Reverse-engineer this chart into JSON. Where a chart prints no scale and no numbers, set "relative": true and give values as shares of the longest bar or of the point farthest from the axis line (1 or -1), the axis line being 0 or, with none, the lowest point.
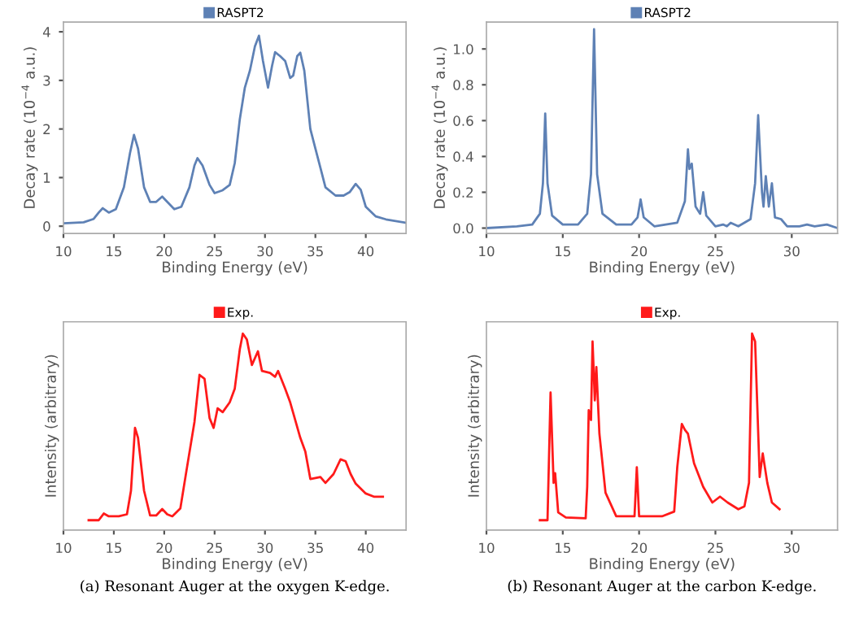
{
  "chart_data": [
    {
      "type": "line",
      "xlabel": "Binding Energy (eV)",
      "ylabel": "Decay rate (10$^{−4}$ a.u.)",
      "legend": "top",
      "xlim": [
        10,
        44
      ],
      "ylim": [
        -0.15,
        4.2
      ],
      "xticks": [
        10,
        15,
        20,
        25,
        30,
        35,
        40
      ],
      "yticks": [
        0,
        1,
        2,
        3,
        4
      ],
      "series": [
        {
          "name": "RASPT2",
          "color": "#5e81b5",
          "x": [
            10,
            12,
            13,
            13.5,
            13.9,
            14.5,
            15.2,
            16,
            16.6,
            17.0,
            17.4,
            18,
            18.6,
            19.2,
            19.8,
            20.3,
            21,
            21.7,
            22.5,
            23.0,
            23.3,
            23.8,
            24.5,
            25,
            25.8,
            26.5,
            27,
            27.5,
            28,
            28.5,
            29,
            29.4,
            29.8,
            30.3,
            30.7,
            31,
            31.5,
            32,
            32.5,
            32.8,
            33.2,
            33.5,
            33.9,
            34.5,
            35,
            35.5,
            36,
            37,
            37.8,
            38.4,
            39,
            39.5,
            40,
            41,
            42,
            44
          ],
          "values": [
            0.06,
            0.08,
            0.15,
            0.28,
            0.37,
            0.28,
            0.35,
            0.8,
            1.5,
            1.88,
            1.6,
            0.8,
            0.5,
            0.5,
            0.61,
            0.5,
            0.35,
            0.4,
            0.8,
            1.25,
            1.4,
            1.25,
            0.85,
            0.68,
            0.74,
            0.85,
            1.3,
            2.2,
            2.85,
            3.2,
            3.7,
            3.92,
            3.4,
            2.85,
            3.3,
            3.58,
            3.5,
            3.4,
            3.05,
            3.1,
            3.5,
            3.57,
            3.2,
            2.0,
            1.6,
            1.2,
            0.8,
            0.63,
            0.63,
            0.7,
            0.87,
            0.75,
            0.4,
            0.2,
            0.14,
            0.07
          ]
        }
      ]
    },
    {
      "type": "line",
      "xlabel": "Binding Energy (eV)",
      "ylabel": "Decay rate (10$^{−4}$ a.u.)",
      "legend": "top",
      "xlim": [
        10,
        33
      ],
      "ylim": [
        -0.03,
        1.15
      ],
      "xticks": [
        10,
        15,
        20,
        25,
        30
      ],
      "yticks": [
        {
          "value": 0,
          "label": "0.0"
        },
        {
          "value": 0.2,
          "label": "0.2"
        },
        {
          "value": 0.4,
          "label": "0.4"
        },
        {
          "value": 0.6,
          "label": "0.6"
        },
        {
          "value": 0.8,
          "label": "0.8"
        },
        {
          "value": 1.0,
          "label": "1.0"
        }
      ],
      "series": [
        {
          "name": "RASPT2",
          "color": "#5e81b5",
          "x": [
            10,
            12,
            13,
            13.5,
            13.7,
            13.85,
            14.0,
            14.3,
            15,
            16,
            16.6,
            16.85,
            17.05,
            17.25,
            17.6,
            18.5,
            19.5,
            19.9,
            20.1,
            20.3,
            21,
            22.5,
            23.0,
            23.2,
            23.3,
            23.45,
            23.7,
            24.0,
            24.2,
            24.4,
            25,
            25.5,
            25.75,
            26,
            26.5,
            27.3,
            27.6,
            27.8,
            28.05,
            28.15,
            28.3,
            28.5,
            28.7,
            28.9,
            29.3,
            29.7,
            30.5,
            31,
            31.5,
            32.3,
            33
          ],
          "values": [
            0.0,
            0.01,
            0.02,
            0.08,
            0.25,
            0.64,
            0.25,
            0.07,
            0.02,
            0.02,
            0.08,
            0.3,
            1.11,
            0.3,
            0.08,
            0.02,
            0.02,
            0.06,
            0.16,
            0.06,
            0.01,
            0.03,
            0.15,
            0.44,
            0.33,
            0.36,
            0.12,
            0.08,
            0.2,
            0.07,
            0.01,
            0.02,
            0.01,
            0.03,
            0.01,
            0.05,
            0.25,
            0.63,
            0.2,
            0.12,
            0.29,
            0.12,
            0.25,
            0.06,
            0.05,
            0.01,
            0.01,
            0.02,
            0.01,
            0.02,
            0.0
          ]
        }
      ]
    },
    {
      "type": "line",
      "relative": true,
      "xlabel": "Binding Energy (eV)",
      "ylabel": "Intensity (arbitrary)",
      "legend": "top",
      "xlim": [
        10,
        44
      ],
      "xticks": [
        10,
        15,
        20,
        25,
        30,
        35,
        40
      ],
      "annotations": [
        "(a) Resonant Auger at the oxygen K-edge."
      ],
      "series": [
        {
          "name": "Exp.",
          "color": "#ff1a1a",
          "x": [
            12.5,
            13.5,
            14.0,
            14.5,
            15.5,
            16.3,
            16.7,
            17.1,
            17.4,
            18,
            18.6,
            19.2,
            19.8,
            20.3,
            20.8,
            21.6,
            22.2,
            23,
            23.5,
            24,
            24.5,
            24.9,
            25.3,
            25.8,
            26.5,
            27,
            27.5,
            27.8,
            28.2,
            28.7,
            29.3,
            29.7,
            30.5,
            31,
            31.3,
            32,
            32.5,
            33.5,
            34,
            34.5,
            35.5,
            36,
            36.8,
            37.5,
            38,
            38.5,
            39,
            40,
            40.8,
            41.7
          ],
          "values": [
            0.05,
            0.05,
            0.084,
            0.07,
            0.07,
            0.08,
            0.2,
            0.52,
            0.47,
            0.2,
            0.074,
            0.074,
            0.107,
            0.08,
            0.07,
            0.11,
            0.3,
            0.55,
            0.79,
            0.77,
            0.57,
            0.52,
            0.62,
            0.6,
            0.65,
            0.72,
            0.92,
            1.0,
            0.97,
            0.84,
            0.91,
            0.81,
            0.8,
            0.78,
            0.81,
            0.72,
            0.65,
            0.47,
            0.4,
            0.26,
            0.27,
            0.24,
            0.285,
            0.36,
            0.35,
            0.285,
            0.236,
            0.186,
            0.17,
            0.17
          ]
        }
      ]
    },
    {
      "type": "line",
      "relative": true,
      "xlabel": "Binding Energy (eV)",
      "ylabel": "Intensity (arbitrary)",
      "legend": "top",
      "xlim": [
        10,
        33
      ],
      "xticks": [
        10,
        15,
        20,
        25,
        30
      ],
      "annotations": [
        "(b) Resonant Auger at the carbon K-edge."
      ],
      "series": [
        {
          "name": "Exp.",
          "color": "#ff1a1a",
          "x": [
            13.5,
            14.0,
            14.2,
            14.4,
            14.5,
            14.7,
            15.2,
            16.5,
            16.6,
            16.7,
            16.85,
            16.95,
            17.1,
            17.2,
            17.4,
            17.8,
            18.5,
            19.7,
            19.85,
            20.0,
            21.5,
            22.3,
            22.5,
            22.8,
            23.0,
            23.2,
            23.6,
            24.2,
            24.8,
            25.3,
            25.8,
            26.5,
            26.9,
            27.2,
            27.4,
            27.6,
            27.9,
            28.1,
            28.4,
            28.7,
            29.2
          ],
          "values": [
            0.05,
            0.05,
            0.7,
            0.24,
            0.29,
            0.09,
            0.064,
            0.06,
            0.22,
            0.61,
            0.56,
            0.96,
            0.66,
            0.83,
            0.49,
            0.19,
            0.07,
            0.07,
            0.32,
            0.07,
            0.07,
            0.094,
            0.32,
            0.54,
            0.51,
            0.49,
            0.34,
            0.22,
            0.14,
            0.17,
            0.14,
            0.106,
            0.12,
            0.24,
            1.0,
            0.96,
            0.27,
            0.39,
            0.24,
            0.14,
            0.106
          ]
        }
      ]
    }
  ]
}
